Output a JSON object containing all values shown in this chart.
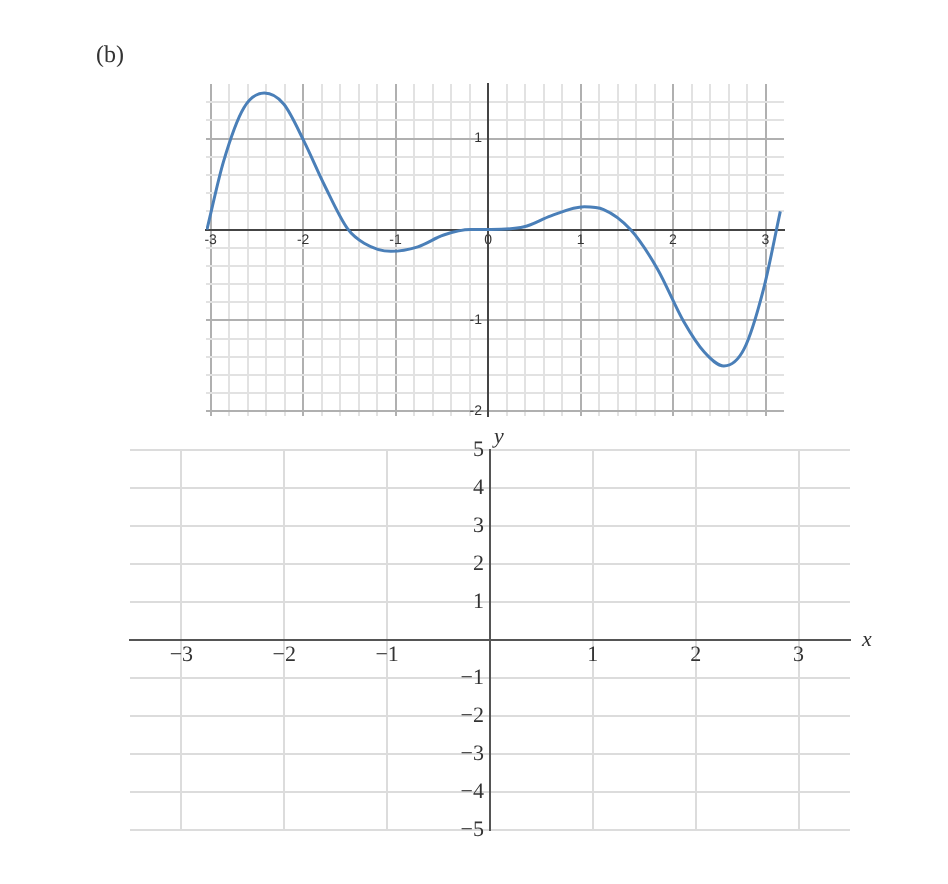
{
  "chart_data": [
    {
      "type": "line",
      "title": "(b)",
      "xlim": [
        -3.05,
        3.2
      ],
      "ylim": [
        -2.05,
        1.6
      ],
      "xticks": [
        {
          "value": -3,
          "label": "-3"
        },
        {
          "value": -2.8,
          "label": null
        },
        {
          "value": -2.6,
          "label": null
        },
        {
          "value": -2.4,
          "label": null
        },
        {
          "value": -2.2,
          "label": null
        },
        {
          "value": -2,
          "label": "-2"
        },
        {
          "value": -1.8,
          "label": null
        },
        {
          "value": -1.6,
          "label": null
        },
        {
          "value": -1.4,
          "label": null
        },
        {
          "value": -1.2,
          "label": null
        },
        {
          "value": -1,
          "label": "-1"
        },
        {
          "value": -0.8,
          "label": null
        },
        {
          "value": -0.6,
          "label": null
        },
        {
          "value": -0.4,
          "label": null
        },
        {
          "value": -0.2,
          "label": null
        },
        0,
        {
          "value": 0.2,
          "label": null
        },
        {
          "value": 0.4,
          "label": null
        },
        {
          "value": 0.6,
          "label": null
        },
        {
          "value": 0.8,
          "label": null
        },
        1,
        {
          "value": 1.2,
          "label": null
        },
        {
          "value": 1.4,
          "label": null
        },
        {
          "value": 1.6,
          "label": null
        },
        {
          "value": 1.8,
          "label": null
        },
        2,
        {
          "value": 2.2,
          "label": null
        },
        {
          "value": 2.4,
          "label": null
        },
        {
          "value": 2.6,
          "label": null
        },
        {
          "value": 2.8,
          "label": null
        },
        3
      ],
      "yticks": [
        {
          "value": -2,
          "label": "-2"
        },
        {
          "value": -1.8,
          "label": null
        },
        {
          "value": -1.6,
          "label": null
        },
        {
          "value": -1.4,
          "label": null
        },
        {
          "value": -1.2,
          "label": null
        },
        {
          "value": -1,
          "label": "-1"
        },
        {
          "value": -0.8,
          "label": null
        },
        {
          "value": -0.6,
          "label": null
        },
        {
          "value": -0.4,
          "label": null
        },
        {
          "value": -0.2,
          "label": null
        },
        {
          "value": 0,
          "label": null
        },
        {
          "value": 0.2,
          "label": null
        },
        {
          "value": 0.4,
          "label": null
        },
        {
          "value": 0.6,
          "label": null
        },
        {
          "value": 0.8,
          "label": null
        },
        1,
        {
          "value": 1.2,
          "label": null
        },
        {
          "value": 1.4,
          "label": null
        }
      ],
      "grid": true,
      "legend": false,
      "series": [
        {
          "color": "#4a7fb8",
          "x": [
            -3.04,
            -2.86,
            -2.64,
            -2.42,
            -2.21,
            -1.99,
            -1.77,
            -1.52,
            -1.34,
            -1.05,
            -0.76,
            -0.48,
            -0.19,
            0.03,
            0.39,
            0.68,
            1.04,
            1.25,
            1.54,
            1.83,
            2.12,
            2.34,
            2.55,
            2.77,
            2.98,
            3.16
          ],
          "values": [
            0,
            0.75,
            1.34,
            1.5,
            1.38,
            0.97,
            0.49,
            0.01,
            -0.15,
            -0.24,
            -0.19,
            -0.06,
            0,
            0,
            0.03,
            0.15,
            0.25,
            0.22,
            0,
            -0.43,
            -1.02,
            -1.35,
            -1.5,
            -1.31,
            -0.65,
            0.2
          ]
        }
      ]
    },
    {
      "type": "line",
      "xlabel": "x",
      "ylabel": "y",
      "xlim": [
        -3.5,
        3.5
      ],
      "ylim": [
        -5,
        5
      ],
      "xticks": [
        {
          "value": -3,
          "label": "−3"
        },
        {
          "value": -2,
          "label": "−2"
        },
        {
          "value": -1,
          "label": "−1"
        },
        {
          "value": 0,
          "label": null
        },
        1,
        2,
        3
      ],
      "yticks": [
        {
          "value": -5,
          "label": "−5"
        },
        {
          "value": -4,
          "label": "−4"
        },
        {
          "value": -3,
          "label": "−3"
        },
        {
          "value": -2,
          "label": "−2"
        },
        {
          "value": -1,
          "label": "−1"
        },
        {
          "value": 0,
          "label": null
        },
        1,
        2,
        3,
        4,
        5
      ],
      "grid": true,
      "legend": false
    }
  ]
}
